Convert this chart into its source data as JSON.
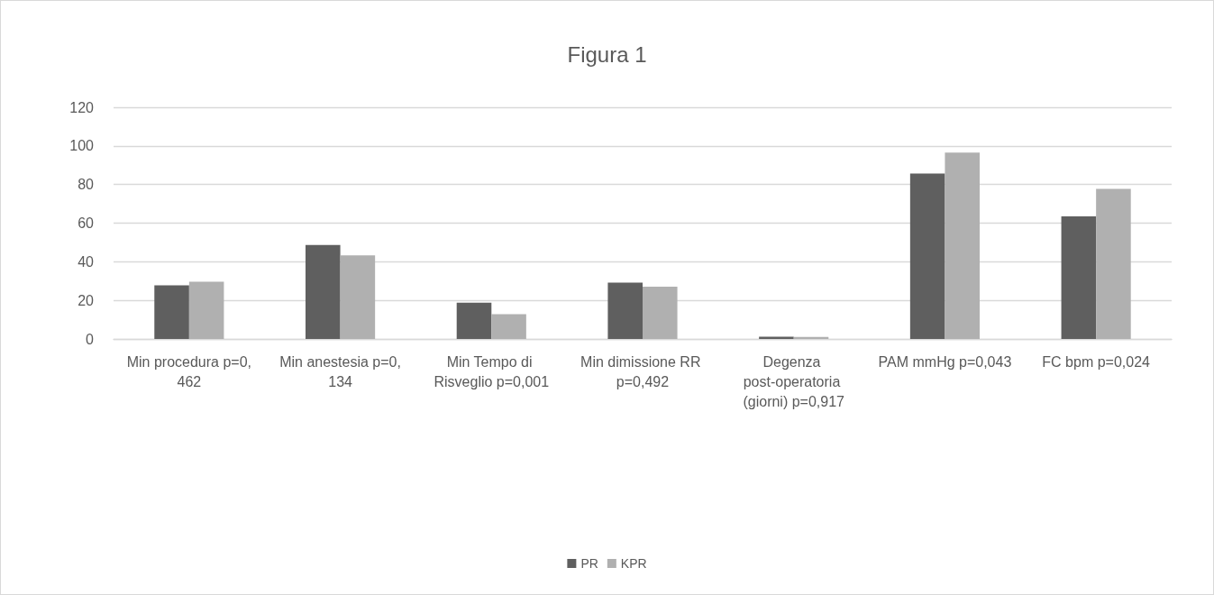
{
  "chart_data": {
    "type": "bar",
    "title": "Figura 1",
    "categories": [
      "Min procedura p=0,462",
      "Min anestesia p=0,134",
      "Min Tempo di Risveglio p=0,001",
      "Min dimissione RR p=0,492",
      "Degenza post-operatoria (giorni) p=0,917",
      "PAM mmHg p=0,043",
      "FC bpm p=0,024"
    ],
    "series": [
      {
        "name": "PR",
        "color": "#5f5f5f",
        "values": [
          27.8,
          48.7,
          18.8,
          29.2,
          1.2,
          85.7,
          63.5
        ]
      },
      {
        "name": "KPR",
        "color": "#b0b0b0",
        "values": [
          29.7,
          43.3,
          12.8,
          27.1,
          1.0,
          96.5,
          77.8
        ]
      }
    ],
    "ylim": [
      0,
      120
    ],
    "yticks": [
      0,
      20,
      40,
      60,
      80,
      100,
      120
    ],
    "grid": true,
    "legend": "bottom"
  }
}
